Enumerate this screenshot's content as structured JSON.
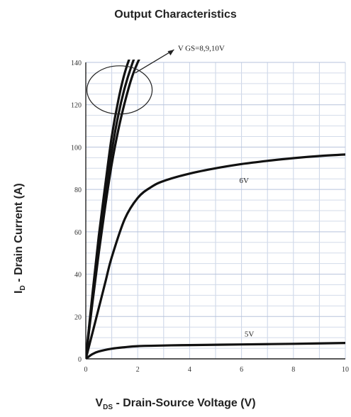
{
  "chart_data": {
    "type": "line",
    "title": "Output Characteristics",
    "xlabel": {
      "main": "V",
      "sub": "DS",
      "rest": " - Drain-Source Voltage (V)"
    },
    "ylabel": {
      "main": "I",
      "sub": "D",
      "rest": " - Drain Current (A)"
    },
    "xlim": [
      0,
      10
    ],
    "ylim": [
      0,
      140
    ],
    "x_ticks": [
      "0",
      "2",
      "4",
      "6",
      "8",
      "10"
    ],
    "y_ticks": [
      "0",
      "20",
      "40",
      "60",
      "80",
      "100",
      "120",
      "140"
    ],
    "grid": true,
    "annotations": [
      "V GS=8,9,10V",
      "6V",
      "5V"
    ],
    "series": [
      {
        "x": [
          0,
          0.25,
          0.5,
          0.75,
          1.0,
          1.25,
          1.5,
          1.75,
          2.0
        ],
        "y": [
          0,
          30,
          58,
          82,
          105,
          122,
          135,
          144,
          150
        ]
      },
      {
        "x": [
          0,
          0.25,
          0.5,
          0.75,
          1.0,
          1.25,
          1.5,
          1.75,
          2.0,
          2.2
        ],
        "y": [
          0,
          28,
          54,
          77,
          98,
          115,
          128,
          138,
          146,
          150
        ]
      },
      {
        "x": [
          0,
          0.25,
          0.5,
          0.75,
          1.0,
          1.25,
          1.5,
          1.75,
          2.0,
          2.25,
          2.5
        ],
        "y": [
          0,
          26,
          50,
          72,
          92,
          108,
          121,
          132,
          140,
          146,
          150
        ]
      },
      {
        "x": [
          0,
          0.25,
          0.5,
          0.75,
          1.0,
          1.5,
          2.0,
          2.5,
          3.0,
          4.0,
          5.0,
          6.0,
          7.0,
          8.0,
          9.0,
          10.0
        ],
        "y": [
          0,
          12,
          24,
          36,
          48,
          66,
          76,
          81,
          84,
          87.5,
          90,
          92,
          93.5,
          94.8,
          95.8,
          96.5
        ]
      },
      {
        "x": [
          0,
          0.25,
          0.5,
          1.0,
          1.5,
          2.0,
          3.0,
          4.0,
          6.0,
          8.0,
          10.0
        ],
        "y": [
          0,
          2.2,
          3.5,
          4.8,
          5.5,
          6.0,
          6.3,
          6.5,
          6.8,
          7.1,
          7.5
        ]
      }
    ]
  }
}
